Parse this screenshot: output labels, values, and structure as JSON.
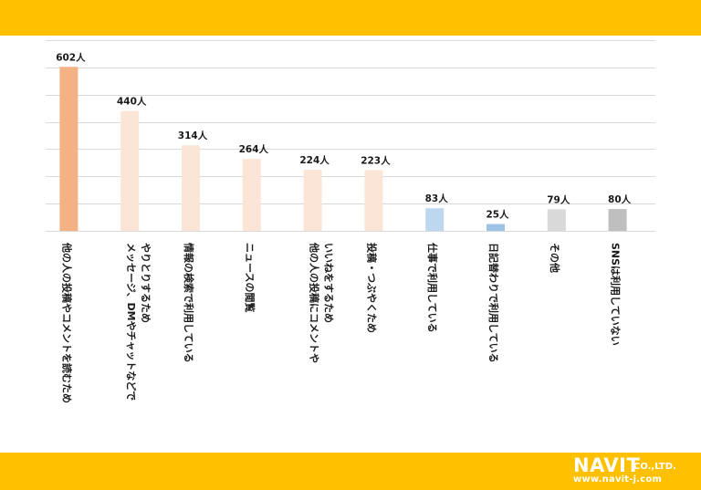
{
  "theme": {
    "band_color": "#FFC000",
    "grid_color": "#D9D9D9",
    "text_color": "#1a1a1a"
  },
  "logo": {
    "brand": "NAVIT",
    "suffix": "CO.,LTD.",
    "url": "www.navit-j.com"
  },
  "chart_data": {
    "type": "bar",
    "title": "",
    "xlabel": "",
    "ylabel": "",
    "ylim": [
      0,
      700
    ],
    "grid": true,
    "categories": [
      "他の人の投稿やコメントを読むため",
      "メッセージ、DMやチャットなどでやりとりするため",
      "情報の検索で利用している",
      "ニュースの閲覧",
      "他の人の投稿にコメントやいいねをするため",
      "投稿・つぶやくため",
      "仕事で利用している",
      "日記替わりで利用している",
      "その他",
      "SNSは利用していない"
    ],
    "category_lines": [
      [
        "他の人の投稿やコメントを読むため"
      ],
      [
        "メッセージ、DMやチャットなどで",
        "やりとりするため"
      ],
      [
        "情報の検索で利用している"
      ],
      [
        "ニュースの閲覧"
      ],
      [
        "他の人の投稿にコメントや",
        "いいねをするため"
      ],
      [
        "投稿・つぶやくため"
      ],
      [
        "仕事で利用している"
      ],
      [
        "日記替わりで利用している"
      ],
      [
        "その他"
      ],
      [
        "SNSは利用していない"
      ]
    ],
    "values": [
      602,
      440,
      314,
      264,
      224,
      223,
      83,
      25,
      79,
      80
    ],
    "value_labels": [
      "602人",
      "440人",
      "314人",
      "264人",
      "224人",
      "223人",
      "83人",
      "25人",
      "79人",
      "80人"
    ],
    "bar_colors": [
      "#F4B183",
      "#FBE5D6",
      "#FBE5D6",
      "#FBE5D6",
      "#FBE5D6",
      "#FBE5D6",
      "#BDD7EE",
      "#9DC3E6",
      "#D9D9D9",
      "#BFBFBF"
    ]
  }
}
